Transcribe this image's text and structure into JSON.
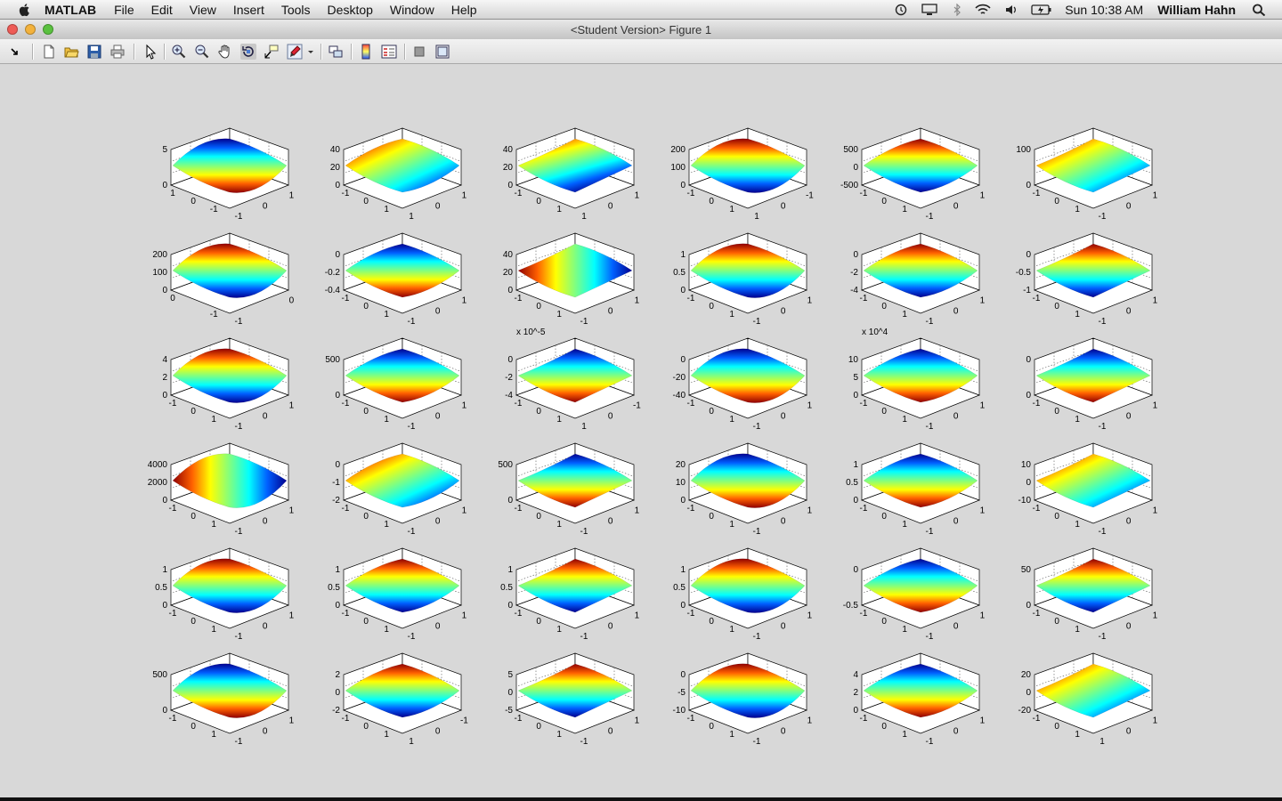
{
  "menubar": {
    "app_name": "MATLAB",
    "items": [
      "File",
      "Edit",
      "View",
      "Insert",
      "Tools",
      "Desktop",
      "Window",
      "Help"
    ],
    "clock": "Sun 10:38 AM",
    "user": "William Hahn",
    "status_icons": [
      "time-machine-icon",
      "display-icon",
      "bluetooth-icon",
      "wifi-icon",
      "volume-icon",
      "battery-icon",
      "spotlight-search-icon"
    ]
  },
  "window": {
    "title": "<Student Version> Figure 1",
    "traffic_colors": {
      "close": "#ee5b56",
      "minimize": "#f3b23c",
      "zoom": "#5ac13f"
    }
  },
  "toolbar": {
    "buttons": [
      "dock-arrow-icon",
      "new-figure-icon",
      "open-file-icon",
      "save-icon",
      "print-icon",
      "select-arrow-icon",
      "zoom-in-icon",
      "zoom-out-icon",
      "pan-hand-icon",
      "rotate-3d-icon",
      "data-cursor-icon",
      "brush-icon",
      "brush-dropdown-icon",
      "link-plot-icon",
      "colorbar-icon",
      "legend-icon",
      "hide-plot-tools-icon",
      "show-plot-tools-icon"
    ]
  },
  "chart_data": {
    "type": "surface-grid",
    "rows": 6,
    "cols": 6,
    "colormap": [
      "#00008f",
      "#0060ff",
      "#00ffff",
      "#80ff80",
      "#ffff00",
      "#ff6000",
      "#8f0000"
    ],
    "plots": [
      {
        "z": [
          "5",
          "0"
        ],
        "x": [
          "1",
          "0",
          "-1"
        ],
        "y": [
          "-1",
          "0",
          "1"
        ],
        "scale": ""
      },
      {
        "z": [
          "40",
          "20",
          "0"
        ],
        "x": [
          "-1",
          "0",
          "1"
        ],
        "y": [
          "1",
          "0",
          "1"
        ],
        "scale": ""
      },
      {
        "z": [
          "40",
          "20",
          "0"
        ],
        "x": [
          "-1",
          "0",
          "1"
        ],
        "y": [
          "1",
          "0",
          "1"
        ],
        "scale": ""
      },
      {
        "z": [
          "200",
          "100",
          "0"
        ],
        "x": [
          "-1",
          "0",
          "1"
        ],
        "y": [
          "1",
          "0",
          "-1"
        ],
        "scale": ""
      },
      {
        "z": [
          "500",
          "0",
          "-500"
        ],
        "x": [
          "-1",
          "0",
          "1"
        ],
        "y": [
          "-1",
          "0",
          "1"
        ],
        "scale": ""
      },
      {
        "z": [
          "100",
          "0"
        ],
        "x": [
          "-1",
          "0",
          "1"
        ],
        "y": [
          "-1",
          "0",
          "1"
        ],
        "scale": ""
      },
      {
        "z": [
          "200",
          "100",
          "0"
        ],
        "x": [
          "0",
          "-1"
        ],
        "y": [
          "-1",
          "0"
        ],
        "scale": ""
      },
      {
        "z": [
          "0",
          "-0.2",
          "-0.4"
        ],
        "x": [
          "-1",
          "0",
          "1"
        ],
        "y": [
          "-1",
          "0",
          "1"
        ],
        "scale": ""
      },
      {
        "z": [
          "40",
          "20",
          "0"
        ],
        "x": [
          "-1",
          "0",
          "1"
        ],
        "y": [
          "-1",
          "0",
          "1"
        ],
        "scale": ""
      },
      {
        "z": [
          "1",
          "0.5",
          "0"
        ],
        "x": [
          "-1",
          "0",
          "1"
        ],
        "y": [
          "-1",
          "0",
          "1"
        ],
        "scale": ""
      },
      {
        "z": [
          "0",
          "-2",
          "-4"
        ],
        "x": [
          "-1",
          "0",
          "1"
        ],
        "y": [
          "-1",
          "0",
          "1"
        ],
        "scale": ""
      },
      {
        "z": [
          "0",
          "-0.5",
          "-1"
        ],
        "x": [
          "-1",
          "0",
          "1"
        ],
        "y": [
          "-1",
          "0",
          "1"
        ],
        "scale": ""
      },
      {
        "z": [
          "4",
          "2",
          "0"
        ],
        "x": [
          "-1",
          "0",
          "1"
        ],
        "y": [
          "-1",
          "0",
          "1"
        ],
        "scale": ""
      },
      {
        "z": [
          "500",
          "0"
        ],
        "x": [
          "-1",
          "0",
          "1"
        ],
        "y": [
          "-1",
          "0",
          "1"
        ],
        "scale": ""
      },
      {
        "z": [
          "0",
          "-2",
          "-4"
        ],
        "x": [
          "-1",
          "0",
          "1"
        ],
        "y": [
          "1",
          "0",
          "-1"
        ],
        "scale": "x 10^-5"
      },
      {
        "z": [
          "0",
          "-20",
          "-40"
        ],
        "x": [
          "-1",
          "0",
          "1"
        ],
        "y": [
          "-1",
          "0",
          "1"
        ],
        "scale": ""
      },
      {
        "z": [
          "10",
          "5",
          "0"
        ],
        "x": [
          "-1",
          "0",
          "1"
        ],
        "y": [
          "-1",
          "0",
          "1"
        ],
        "scale": "x 10^4"
      },
      {
        "z": [
          "0",
          "0"
        ],
        "x": [
          "-1",
          "0",
          "1"
        ],
        "y": [
          "-1",
          "0",
          "1"
        ],
        "scale": ""
      },
      {
        "z": [
          "4000",
          "2000",
          "0"
        ],
        "x": [
          "-1",
          "0",
          "1"
        ],
        "y": [
          "-1",
          "0",
          "1"
        ],
        "scale": ""
      },
      {
        "z": [
          "0",
          "-1",
          "-2"
        ],
        "x": [
          "-1",
          "0",
          "1"
        ],
        "y": [
          "-1",
          "0",
          "1"
        ],
        "scale": ""
      },
      {
        "z": [
          "500",
          "0"
        ],
        "x": [
          "-1",
          "0",
          "1"
        ],
        "y": [
          "-1",
          "0",
          "1"
        ],
        "scale": ""
      },
      {
        "z": [
          "20",
          "10",
          "0"
        ],
        "x": [
          "-1",
          "0",
          "1"
        ],
        "y": [
          "-1",
          "0",
          "1"
        ],
        "scale": ""
      },
      {
        "z": [
          "1",
          "0.5",
          "0"
        ],
        "x": [
          "-1",
          "0",
          "1"
        ],
        "y": [
          "-1",
          "0",
          "1"
        ],
        "scale": ""
      },
      {
        "z": [
          "10",
          "0",
          "-10"
        ],
        "x": [
          "-1",
          "0",
          "1"
        ],
        "y": [
          "-1",
          "0",
          "1"
        ],
        "scale": ""
      },
      {
        "z": [
          "1",
          "0.5",
          "0"
        ],
        "x": [
          "-1",
          "0",
          "1"
        ],
        "y": [
          "-1",
          "0",
          "1"
        ],
        "scale": ""
      },
      {
        "z": [
          "1",
          "0.5",
          "0"
        ],
        "x": [
          "-1",
          "0",
          "1"
        ],
        "y": [
          "-1",
          "0",
          "1"
        ],
        "scale": ""
      },
      {
        "z": [
          "1",
          "0.5",
          "0"
        ],
        "x": [
          "-1",
          "0",
          "1"
        ],
        "y": [
          "-1",
          "0",
          "1"
        ],
        "scale": ""
      },
      {
        "z": [
          "1",
          "0.5",
          "0"
        ],
        "x": [
          "-1",
          "0",
          "1"
        ],
        "y": [
          "-1",
          "0",
          "1"
        ],
        "scale": ""
      },
      {
        "z": [
          "0",
          "-0.5"
        ],
        "x": [
          "-1",
          "0",
          "1"
        ],
        "y": [
          "-1",
          "0",
          "1"
        ],
        "scale": ""
      },
      {
        "z": [
          "50",
          "0"
        ],
        "x": [
          "-1",
          "0",
          "1"
        ],
        "y": [
          "-1",
          "0",
          "1"
        ],
        "scale": ""
      },
      {
        "z": [
          "500",
          "0"
        ],
        "x": [
          "-1",
          "0",
          "1"
        ],
        "y": [
          "-1",
          "0",
          "1"
        ],
        "scale": ""
      },
      {
        "z": [
          "2",
          "0",
          "-2"
        ],
        "x": [
          "-1",
          "0",
          "1"
        ],
        "y": [
          "1",
          "0",
          "-1"
        ],
        "scale": ""
      },
      {
        "z": [
          "5",
          "0",
          "-5"
        ],
        "x": [
          "-1",
          "0",
          "1"
        ],
        "y": [
          "-1",
          "0",
          "1"
        ],
        "scale": ""
      },
      {
        "z": [
          "0",
          "-5",
          "-10"
        ],
        "x": [
          "-1",
          "0",
          "1"
        ],
        "y": [
          "-1",
          "0",
          "1"
        ],
        "scale": ""
      },
      {
        "z": [
          "4",
          "2",
          "0"
        ],
        "x": [
          "-1",
          "0",
          "1"
        ],
        "y": [
          "-1",
          "0",
          "1"
        ],
        "scale": ""
      },
      {
        "z": [
          "20",
          "0",
          "-20"
        ],
        "x": [
          "-1",
          "0",
          "1"
        ],
        "y": [
          "1",
          "0",
          "1"
        ],
        "scale": ""
      }
    ]
  }
}
